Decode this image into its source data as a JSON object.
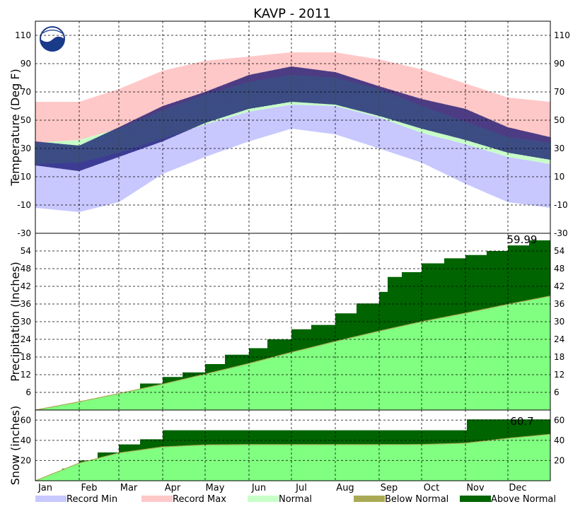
{
  "chart_data": {
    "type": "area",
    "title": "KAVP - 2011",
    "months": [
      "Jan",
      "Feb",
      "Mar",
      "Apr",
      "May",
      "Jun",
      "Jul",
      "Aug",
      "Sep",
      "Oct",
      "Nov",
      "Dec"
    ],
    "grid": true,
    "legend_placement": "bottom",
    "legend": [
      {
        "label": "Record Min",
        "color": "#c8c8ff"
      },
      {
        "label": "Record Max",
        "color": "#ffc8c8"
      },
      {
        "label": "Normal",
        "color": "#c8ffc8"
      },
      {
        "label": "Below Normal",
        "color": "#aaaa55"
      },
      {
        "label": "Above Normal",
        "color": "#006400"
      }
    ],
    "panels": [
      {
        "id": "temperature",
        "ylabel": "Temperature (Deg F)",
        "ylim": [
          -30,
          120
        ],
        "ticks": [
          "110",
          "90",
          "70",
          "50",
          "30",
          "10",
          "-10",
          "-30"
        ],
        "tick_values": [
          110,
          90,
          70,
          50,
          30,
          10,
          -10,
          -30
        ],
        "colors": {
          "record_min": "#c8c8ff",
          "record_max": "#ffc8c8",
          "normal": "#c8ffc8",
          "observed": "#000066"
        },
        "series": [
          {
            "name": "Record Max",
            "x_day": [
              1,
              32,
              60,
              91,
              121,
              152,
              182,
              213,
              244,
              274,
              305,
              335,
              365
            ],
            "values": [
              63,
              63,
              72,
              85,
              92,
              95,
              98,
              98,
              93,
              86,
              76,
              66,
              63
            ]
          },
          {
            "name": "Normal High",
            "x_day": [
              1,
              32,
              60,
              91,
              121,
              152,
              182,
              213,
              244,
              274,
              305,
              335,
              365
            ],
            "values": [
              34,
              36,
              44,
              57,
              68,
              77,
              82,
              80,
              72,
              60,
              49,
              38,
              34
            ]
          },
          {
            "name": "Normal Low",
            "x_day": [
              1,
              32,
              60,
              91,
              121,
              152,
              182,
              213,
              244,
              274,
              305,
              335,
              365
            ],
            "values": [
              19,
              20,
              27,
              37,
              47,
              56,
              61,
              60,
              52,
              41,
              33,
              24,
              19
            ]
          },
          {
            "name": "Record Min",
            "x_day": [
              1,
              32,
              60,
              91,
              121,
              152,
              182,
              213,
              244,
              274,
              305,
              335,
              365
            ],
            "values": [
              -12,
              -15,
              -8,
              12,
              24,
              35,
              44,
              40,
              30,
              20,
              5,
              -8,
              -12
            ]
          },
          {
            "name": "Observed High",
            "x_day": [
              1,
              32,
              60,
              91,
              121,
              152,
              182,
              213,
              244,
              274,
              305,
              335,
              365
            ],
            "values": [
              35,
              32,
              45,
              60,
              70,
              82,
              88,
              84,
              74,
              65,
              58,
              45,
              38
            ]
          },
          {
            "name": "Observed Low",
            "x_day": [
              1,
              32,
              60,
              91,
              121,
              152,
              182,
              213,
              244,
              274,
              305,
              335,
              365
            ],
            "values": [
              18,
              14,
              24,
              35,
              48,
              58,
              63,
              61,
              53,
              44,
              36,
              27,
              22
            ]
          }
        ]
      },
      {
        "id": "precipitation",
        "ylabel": "Precipitation (Inches)",
        "ylim": [
          0,
          60
        ],
        "ticks": [
          "54",
          "48",
          "42",
          "36",
          "30",
          "24",
          "18",
          "12",
          "6"
        ],
        "tick_values": [
          54,
          48,
          42,
          36,
          30,
          24,
          18,
          12,
          6
        ],
        "annotation": "59.99",
        "colors": {
          "normal": "#80ff80",
          "above": "#006400"
        },
        "series": [
          {
            "name": "Normal",
            "x_day": [
              1,
              32,
              60,
              91,
              121,
              152,
              182,
              213,
              244,
              274,
              305,
              335,
              365
            ],
            "values": [
              0,
              2.8,
              5.6,
              8.8,
              12.2,
              15.8,
              19.6,
              23.3,
              26.8,
              30.0,
              32.9,
              35.9,
              38.7
            ]
          },
          {
            "name": "Observed",
            "x_day": [
              1,
              15,
              32,
              46,
              60,
              75,
              91,
              105,
              121,
              135,
              152,
              165,
              182,
              196,
              213,
              228,
              244,
              250,
              260,
              274,
              290,
              305,
              320,
              335,
              350,
              365
            ],
            "values": [
              0,
              1.4,
              3.1,
              3.8,
              5.8,
              9.0,
              11.2,
              12.8,
              15.6,
              18.8,
              21.0,
              24.0,
              27.4,
              28.9,
              32.8,
              36.2,
              40.1,
              45.2,
              46.8,
              49.8,
              51.5,
              52.6,
              54.0,
              55.9,
              57.6,
              59.99
            ]
          }
        ]
      },
      {
        "id": "snow",
        "ylabel": "Snow (inches)",
        "ylim": [
          0,
          70
        ],
        "ticks": [
          "60",
          "40",
          "20"
        ],
        "tick_values": [
          60,
          40,
          20
        ],
        "annotation": "60.7",
        "colors": {
          "normal": "#80ff80",
          "above": "#006400"
        },
        "series": [
          {
            "name": "Normal",
            "x_day": [
              1,
              32,
              60,
              91,
              121,
              152,
              182,
              213,
              244,
              274,
              305,
              335,
              365
            ],
            "values": [
              0,
              17.5,
              27.5,
              33.5,
              35.5,
              35.8,
              35.8,
              35.8,
              35.8,
              35.9,
              37.2,
              42.0,
              46.0
            ]
          },
          {
            "name": "Observed",
            "x_day": [
              1,
              10,
              20,
              32,
              45,
              60,
              75,
              91,
              305,
              306,
              365
            ],
            "values": [
              0,
              5,
              12,
              20,
              28,
              36,
              41,
              50,
              50,
              60.7,
              60.7
            ]
          }
        ]
      }
    ]
  }
}
